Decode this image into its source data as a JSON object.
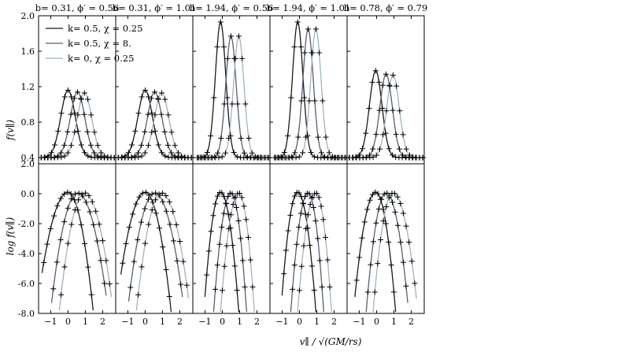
{
  "chart_data": {
    "type": "line",
    "figure_description_free": true,
    "panel_titles": [
      "b= 0.31, ϕ′ = 0.56",
      "b= 0.31, ϕ′ = 1.01",
      "b= 1.94, ϕ′ = 0.56",
      "b= 1.94, ϕ′ = 1.01",
      "b= 0.78, ϕ′ = 0.79"
    ],
    "xlabel": "v∥ / √(GM/rs)",
    "ylabel_top": "f(v∥)",
    "ylabel_bottom": "log f(v∥)",
    "xlim": [
      -1.7,
      2.75
    ],
    "ylim_top": [
      0.33,
      2.0
    ],
    "ylim_bottom": [
      -8.0,
      2.0
    ],
    "x_ticks": [
      -1,
      0,
      1,
      2
    ],
    "x_tick_labels": [
      "−1",
      "0",
      "1",
      "2"
    ],
    "y_ticks_top": [
      0.4,
      0.8,
      1.2,
      1.6,
      2.0
    ],
    "y_tick_labels_top": [
      "0.4",
      "0.8",
      "1.2",
      "1.6",
      "2.0"
    ],
    "y_ticks_bottom": [
      -8,
      -6,
      -4,
      -2,
      0,
      2
    ],
    "y_tick_labels_bottom": [
      "-8.0",
      "-6.0",
      "-4.0",
      "-2.0",
      "0.0",
      "2.0"
    ],
    "series": [
      {
        "name": "k= 0.5, χ = 0.25",
        "color": "#1a1a1a"
      },
      {
        "name": "k= 0.5, χ = 8.",
        "color": "#5c5c74"
      },
      {
        "name": "k= 0, χ = 0.25",
        "color": "#9fb5b8"
      }
    ],
    "panels": [
      {
        "peaks": [
          1.16,
          1.14,
          1.13
        ],
        "centers": [
          0.0,
          0.55,
          0.95
        ],
        "sigma": 0.42,
        "log_left": [
          [
            -1.5,
            -5.3
          ],
          [
            -0.95,
            -7.3
          ],
          [
            -0.5,
            -7.8
          ]
        ],
        "log_right": [
          [
            1.45,
            -7.8
          ],
          [
            2.2,
            -6.8
          ],
          [
            2.5,
            -6.9
          ]
        ]
      },
      {
        "peaks": [
          1.16,
          1.14,
          1.13
        ],
        "centers": [
          0.0,
          0.55,
          0.95
        ],
        "sigma": 0.42,
        "log_left": [
          [
            -1.4,
            -5.4
          ],
          [
            -0.95,
            -7.2
          ],
          [
            -0.5,
            -7.8
          ]
        ],
        "log_right": [
          [
            1.5,
            -7.9
          ],
          [
            2.15,
            -6.9
          ],
          [
            2.5,
            -7.0
          ]
        ]
      },
      {
        "peaks": [
          1.93,
          1.77,
          1.77
        ],
        "centers": [
          -0.1,
          0.5,
          0.95
        ],
        "sigma": 0.3,
        "log_left": [
          [
            -1.0,
            -6.9
          ],
          [
            -0.5,
            -7.9
          ],
          [
            -0.1,
            -7.9
          ]
        ],
        "log_right": [
          [
            0.95,
            -7.9
          ],
          [
            1.4,
            -7.9
          ],
          [
            1.85,
            -7.9
          ]
        ]
      },
      {
        "peaks": [
          1.93,
          1.85,
          1.85
        ],
        "centers": [
          -0.1,
          0.5,
          0.95
        ],
        "sigma": 0.3,
        "log_left": [
          [
            -1.0,
            -6.8
          ],
          [
            -0.5,
            -7.9
          ],
          [
            -0.1,
            -7.9
          ]
        ],
        "log_right": [
          [
            0.95,
            -7.9
          ],
          [
            1.4,
            -7.9
          ],
          [
            1.85,
            -7.9
          ]
        ]
      },
      {
        "peaks": [
          1.38,
          1.34,
          1.33
        ],
        "centers": [
          -0.05,
          0.55,
          0.95
        ],
        "sigma": 0.36,
        "log_left": [
          [
            -1.25,
            -6.9
          ],
          [
            -0.6,
            -7.9
          ],
          [
            -0.2,
            -7.9
          ]
        ],
        "log_right": [
          [
            1.1,
            -7.9
          ],
          [
            1.8,
            -7.3
          ],
          [
            2.3,
            -7.0
          ]
        ]
      }
    ]
  }
}
